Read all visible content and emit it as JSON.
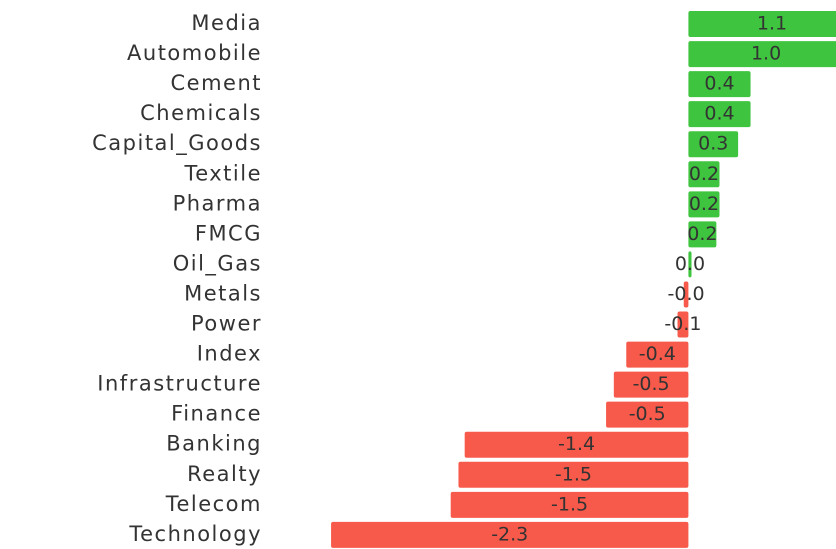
{
  "chart_data": {
    "type": "bar",
    "orientation": "horizontal",
    "categories": [
      "Media",
      "Automobile",
      "Cement",
      "Chemicals",
      "Capital_Goods",
      "Textile",
      "Pharma",
      "FMCG",
      "Oil_Gas",
      "Metals",
      "Power",
      "Index",
      "Infrastructure",
      "Finance",
      "Banking",
      "Realty",
      "Telecom",
      "Technology"
    ],
    "values": [
      1.1,
      1.0,
      0.4,
      0.4,
      0.32,
      0.2,
      0.2,
      0.18,
      0.02,
      -0.03,
      -0.07,
      -0.4,
      -0.48,
      -0.53,
      -1.44,
      -1.48,
      -1.53,
      -2.3
    ],
    "value_labels": [
      "1.1",
      "1.0",
      "0.4",
      "0.4",
      "0.3",
      "0.2",
      "0.2",
      "0.2",
      "0.0",
      "-0.0",
      "-0.1",
      "-0.4",
      "-0.5",
      "-0.5",
      "-1.4",
      "-1.5",
      "-1.5",
      "-2.3"
    ],
    "positive_color": "#3fc43f",
    "negative_color": "#f75a4b",
    "xlim": [
      -2.5,
      0.95
    ]
  }
}
